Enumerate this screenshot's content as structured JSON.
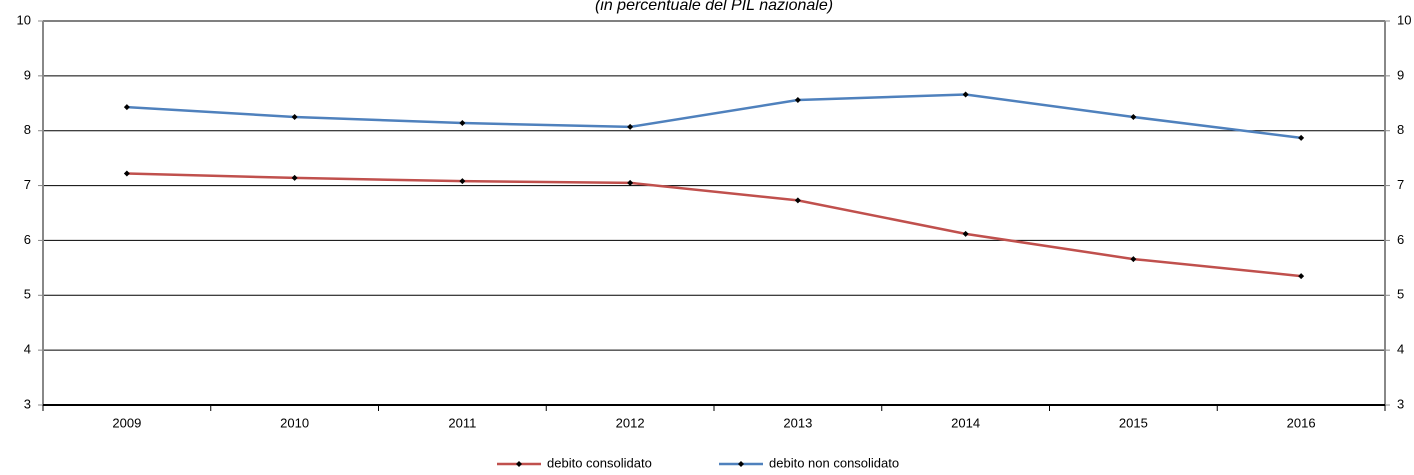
{
  "chart_data": {
    "type": "line",
    "subtitle": "(in percentuale del PIL nazionale)",
    "categories": [
      "2009",
      "2010",
      "2011",
      "2012",
      "2013",
      "2014",
      "2015",
      "2016"
    ],
    "series": [
      {
        "name": "debito consolidato",
        "color": "#c0504d",
        "values": [
          7.22,
          7.14,
          7.08,
          7.05,
          6.73,
          6.12,
          5.66,
          5.35
        ]
      },
      {
        "name": "debito non consolidato",
        "color": "#4f81bd",
        "values": [
          8.43,
          8.25,
          8.14,
          8.07,
          8.56,
          8.66,
          8.25,
          7.87
        ]
      }
    ],
    "ylim": [
      3,
      10
    ],
    "yticks": [
      3,
      4,
      5,
      6,
      7,
      8,
      9,
      10
    ],
    "y2lim": [
      3,
      10
    ],
    "y2ticks": [
      3,
      4,
      5,
      6,
      7,
      8,
      9,
      10
    ],
    "grid": true,
    "legend": "bottom"
  }
}
